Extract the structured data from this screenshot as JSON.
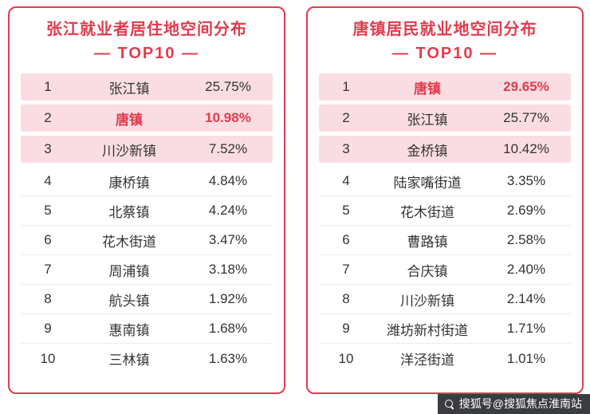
{
  "colors": {
    "accent": "#e23b4c",
    "row_highlight_bg": "#fadde2"
  },
  "chart_data": [
    {
      "type": "table",
      "title": "张江就业者居住地空间分布",
      "subtitle": "— TOP10 —",
      "rows": [
        {
          "rank": "1",
          "name": "张江镇",
          "value": "25.75%",
          "highlight": false
        },
        {
          "rank": "2",
          "name": "唐镇",
          "value": "10.98%",
          "highlight": true
        },
        {
          "rank": "3",
          "name": "川沙新镇",
          "value": "7.52%",
          "highlight": false
        },
        {
          "rank": "4",
          "name": "康桥镇",
          "value": "4.84%",
          "highlight": false
        },
        {
          "rank": "5",
          "name": "北蔡镇",
          "value": "4.24%",
          "highlight": false
        },
        {
          "rank": "6",
          "name": "花木街道",
          "value": "3.47%",
          "highlight": false
        },
        {
          "rank": "7",
          "name": "周浦镇",
          "value": "3.18%",
          "highlight": false
        },
        {
          "rank": "8",
          "name": "航头镇",
          "value": "1.92%",
          "highlight": false
        },
        {
          "rank": "9",
          "name": "惠南镇",
          "value": "1.68%",
          "highlight": false
        },
        {
          "rank": "10",
          "name": "三林镇",
          "value": "1.63%",
          "highlight": false
        }
      ]
    },
    {
      "type": "table",
      "title": "唐镇居民就业地空间分布",
      "subtitle": "— TOP10 —",
      "rows": [
        {
          "rank": "1",
          "name": "唐镇",
          "value": "29.65%",
          "highlight": true
        },
        {
          "rank": "2",
          "name": "张江镇",
          "value": "25.77%",
          "highlight": false
        },
        {
          "rank": "3",
          "name": "金桥镇",
          "value": "10.42%",
          "highlight": false
        },
        {
          "rank": "4",
          "name": "陆家嘴街道",
          "value": "3.35%",
          "highlight": false
        },
        {
          "rank": "5",
          "name": "花木街道",
          "value": "2.69%",
          "highlight": false
        },
        {
          "rank": "6",
          "name": "曹路镇",
          "value": "2.58%",
          "highlight": false
        },
        {
          "rank": "7",
          "name": "合庆镇",
          "value": "2.40%",
          "highlight": false
        },
        {
          "rank": "8",
          "name": "川沙新镇",
          "value": "2.14%",
          "highlight": false
        },
        {
          "rank": "9",
          "name": "潍坊新村街道",
          "value": "1.71%",
          "highlight": false
        },
        {
          "rank": "10",
          "name": "洋泾街道",
          "value": "1.01%",
          "highlight": false
        }
      ]
    }
  ],
  "watermark": {
    "text": "搜狐号@搜狐焦点淮南站"
  }
}
